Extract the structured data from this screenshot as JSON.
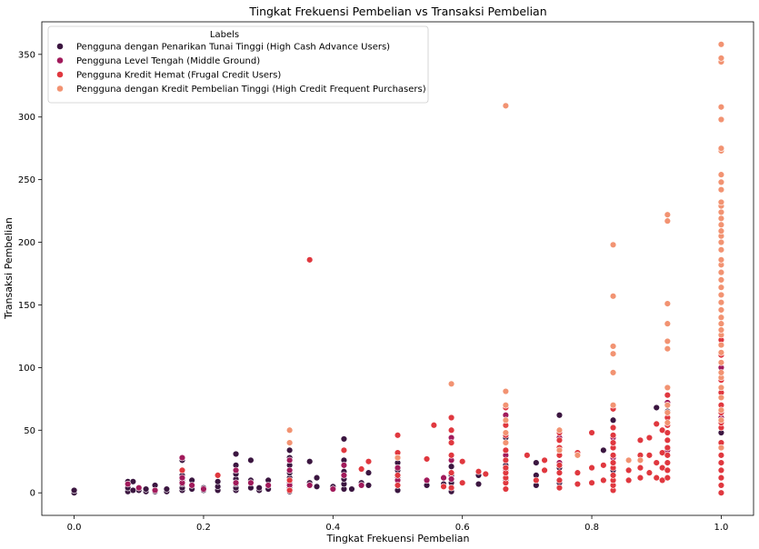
{
  "chart_data": {
    "type": "scatter",
    "title": "Tingkat Frekuensi  Pembelian vs Transaksi Pembelian",
    "xlabel": "Tingkat Frekuensi  Pembelian",
    "ylabel": "Transaksi Pembelian",
    "xlim": [
      -0.05,
      1.05
    ],
    "ylim": [
      -18,
      376
    ],
    "xticks": [
      0.0,
      0.2,
      0.4,
      0.6,
      0.8,
      1.0
    ],
    "xtick_labels": [
      "0.0",
      "0.2",
      "0.4",
      "0.6",
      "0.8",
      "1.0"
    ],
    "yticks": [
      0,
      50,
      100,
      150,
      200,
      250,
      300,
      350
    ],
    "ytick_labels": [
      "0",
      "50",
      "100",
      "150",
      "200",
      "250",
      "300",
      "350"
    ],
    "grid": false,
    "legend": {
      "title": "Labels",
      "placement": "upper-left"
    },
    "series": [
      {
        "name": "Pengguna dengan Penarikan Tunai Tinggi (High Cash Advance Users)",
        "color": "#3b1640",
        "points": [
          [
            0.0,
            0
          ],
          [
            0.0,
            2
          ],
          [
            0.083,
            1
          ],
          [
            0.083,
            4
          ],
          [
            0.083,
            9
          ],
          [
            0.091,
            2
          ],
          [
            0.091,
            9
          ],
          [
            0.1,
            2
          ],
          [
            0.111,
            1
          ],
          [
            0.111,
            3
          ],
          [
            0.125,
            1
          ],
          [
            0.125,
            6
          ],
          [
            0.143,
            1
          ],
          [
            0.143,
            3
          ],
          [
            0.167,
            2
          ],
          [
            0.167,
            4
          ],
          [
            0.167,
            7
          ],
          [
            0.167,
            10
          ],
          [
            0.167,
            14
          ],
          [
            0.167,
            26
          ],
          [
            0.182,
            3
          ],
          [
            0.182,
            10
          ],
          [
            0.2,
            2
          ],
          [
            0.2,
            4
          ],
          [
            0.222,
            2
          ],
          [
            0.222,
            5
          ],
          [
            0.222,
            9
          ],
          [
            0.25,
            2
          ],
          [
            0.25,
            4
          ],
          [
            0.25,
            7
          ],
          [
            0.25,
            11
          ],
          [
            0.25,
            15
          ],
          [
            0.25,
            22
          ],
          [
            0.25,
            31
          ],
          [
            0.273,
            4
          ],
          [
            0.273,
            10
          ],
          [
            0.273,
            26
          ],
          [
            0.286,
            2
          ],
          [
            0.286,
            4
          ],
          [
            0.3,
            3
          ],
          [
            0.3,
            10
          ],
          [
            0.333,
            1
          ],
          [
            0.333,
            4
          ],
          [
            0.333,
            8
          ],
          [
            0.333,
            12
          ],
          [
            0.333,
            16
          ],
          [
            0.333,
            22
          ],
          [
            0.333,
            28
          ],
          [
            0.333,
            34
          ],
          [
            0.364,
            8
          ],
          [
            0.364,
            25
          ],
          [
            0.375,
            5
          ],
          [
            0.375,
            12
          ],
          [
            0.4,
            5
          ],
          [
            0.417,
            3
          ],
          [
            0.417,
            7
          ],
          [
            0.417,
            11
          ],
          [
            0.417,
            17
          ],
          [
            0.417,
            26
          ],
          [
            0.417,
            43
          ],
          [
            0.429,
            3
          ],
          [
            0.444,
            8
          ],
          [
            0.455,
            6
          ],
          [
            0.455,
            16
          ],
          [
            0.5,
            2
          ],
          [
            0.5,
            6
          ],
          [
            0.5,
            12
          ],
          [
            0.5,
            18
          ],
          [
            0.5,
            24
          ],
          [
            0.545,
            6
          ],
          [
            0.571,
            7
          ],
          [
            0.583,
            1
          ],
          [
            0.583,
            8
          ],
          [
            0.583,
            14
          ],
          [
            0.583,
            21
          ],
          [
            0.625,
            7
          ],
          [
            0.625,
            14
          ],
          [
            0.667,
            10
          ],
          [
            0.667,
            22
          ],
          [
            0.667,
            44
          ],
          [
            0.714,
            6
          ],
          [
            0.714,
            14
          ],
          [
            0.714,
            24
          ],
          [
            0.75,
            8
          ],
          [
            0.75,
            20
          ],
          [
            0.75,
            62
          ],
          [
            0.818,
            34
          ],
          [
            0.833,
            18
          ],
          [
            0.833,
            58
          ],
          [
            0.9,
            68
          ],
          [
            0.917,
            65
          ],
          [
            1.0,
            48
          ]
        ]
      },
      {
        "name": "Pengguna Level Tengah (Middle Ground)",
        "color": "#a11a5b",
        "points": [
          [
            0.083,
            7
          ],
          [
            0.1,
            4
          ],
          [
            0.125,
            2
          ],
          [
            0.167,
            8
          ],
          [
            0.167,
            12
          ],
          [
            0.167,
            28
          ],
          [
            0.182,
            6
          ],
          [
            0.2,
            3
          ],
          [
            0.25,
            8
          ],
          [
            0.25,
            18
          ],
          [
            0.273,
            8
          ],
          [
            0.3,
            6
          ],
          [
            0.333,
            6
          ],
          [
            0.333,
            18
          ],
          [
            0.333,
            26
          ],
          [
            0.364,
            6
          ],
          [
            0.4,
            3
          ],
          [
            0.417,
            14
          ],
          [
            0.417,
            22
          ],
          [
            0.444,
            6
          ],
          [
            0.5,
            10
          ],
          [
            0.5,
            20
          ],
          [
            0.545,
            10
          ],
          [
            0.571,
            12
          ],
          [
            0.583,
            11
          ],
          [
            0.583,
            26
          ],
          [
            0.583,
            44
          ],
          [
            0.667,
            18
          ],
          [
            0.667,
            30
          ],
          [
            0.667,
            62
          ],
          [
            0.75,
            24
          ],
          [
            0.75,
            44
          ],
          [
            0.833,
            28
          ],
          [
            0.833,
            44
          ],
          [
            0.917,
            34
          ],
          [
            0.917,
            72
          ],
          [
            1.0,
            36
          ],
          [
            1.0,
            60
          ],
          [
            1.0,
            100
          ]
        ]
      },
      {
        "name": "Pengguna Kredit Hemat (Frugal Credit Users)",
        "color": "#e0383f",
        "points": [
          [
            0.167,
            18
          ],
          [
            0.222,
            14
          ],
          [
            0.333,
            2
          ],
          [
            0.333,
            10
          ],
          [
            0.364,
            186
          ],
          [
            0.417,
            34
          ],
          [
            0.444,
            19
          ],
          [
            0.455,
            25
          ],
          [
            0.5,
            6
          ],
          [
            0.5,
            14
          ],
          [
            0.5,
            32
          ],
          [
            0.5,
            46
          ],
          [
            0.545,
            27
          ],
          [
            0.556,
            54
          ],
          [
            0.571,
            5
          ],
          [
            0.583,
            4
          ],
          [
            0.583,
            16
          ],
          [
            0.583,
            30
          ],
          [
            0.583,
            40
          ],
          [
            0.583,
            50
          ],
          [
            0.583,
            60
          ],
          [
            0.6,
            8
          ],
          [
            0.6,
            25
          ],
          [
            0.625,
            17
          ],
          [
            0.636,
            15
          ],
          [
            0.667,
            3
          ],
          [
            0.667,
            8
          ],
          [
            0.667,
            12
          ],
          [
            0.667,
            16
          ],
          [
            0.667,
            20
          ],
          [
            0.667,
            26
          ],
          [
            0.667,
            34
          ],
          [
            0.667,
            40
          ],
          [
            0.667,
            46
          ],
          [
            0.667,
            54
          ],
          [
            0.667,
            68
          ],
          [
            0.7,
            30
          ],
          [
            0.714,
            10
          ],
          [
            0.727,
            18
          ],
          [
            0.727,
            26
          ],
          [
            0.75,
            4
          ],
          [
            0.75,
            10
          ],
          [
            0.75,
            16
          ],
          [
            0.75,
            22
          ],
          [
            0.75,
            30
          ],
          [
            0.75,
            36
          ],
          [
            0.75,
            42
          ],
          [
            0.75,
            48
          ],
          [
            0.778,
            7
          ],
          [
            0.778,
            16
          ],
          [
            0.778,
            32
          ],
          [
            0.8,
            8
          ],
          [
            0.8,
            20
          ],
          [
            0.8,
            48
          ],
          [
            0.818,
            10
          ],
          [
            0.818,
            22
          ],
          [
            0.833,
            2
          ],
          [
            0.833,
            6
          ],
          [
            0.833,
            10
          ],
          [
            0.833,
            14
          ],
          [
            0.833,
            20
          ],
          [
            0.833,
            24
          ],
          [
            0.833,
            30
          ],
          [
            0.833,
            36
          ],
          [
            0.833,
            40
          ],
          [
            0.833,
            46
          ],
          [
            0.833,
            52
          ],
          [
            0.833,
            67
          ],
          [
            0.857,
            10
          ],
          [
            0.857,
            18
          ],
          [
            0.875,
            12
          ],
          [
            0.875,
            20
          ],
          [
            0.875,
            30
          ],
          [
            0.875,
            42
          ],
          [
            0.889,
            16
          ],
          [
            0.889,
            30
          ],
          [
            0.889,
            44
          ],
          [
            0.9,
            12
          ],
          [
            0.9,
            24
          ],
          [
            0.9,
            55
          ],
          [
            0.909,
            10
          ],
          [
            0.909,
            20
          ],
          [
            0.909,
            32
          ],
          [
            0.909,
            50
          ],
          [
            0.917,
            12
          ],
          [
            0.917,
            18
          ],
          [
            0.917,
            24
          ],
          [
            0.917,
            30
          ],
          [
            0.917,
            36
          ],
          [
            0.917,
            42
          ],
          [
            0.917,
            48
          ],
          [
            0.917,
            54
          ],
          [
            0.917,
            60
          ],
          [
            0.917,
            78
          ],
          [
            1.0,
            0
          ],
          [
            1.0,
            6
          ],
          [
            1.0,
            12
          ],
          [
            1.0,
            18
          ],
          [
            1.0,
            24
          ],
          [
            1.0,
            30
          ],
          [
            1.0,
            40
          ],
          [
            1.0,
            52
          ],
          [
            1.0,
            56
          ],
          [
            1.0,
            64
          ],
          [
            1.0,
            70
          ],
          [
            1.0,
            80
          ],
          [
            1.0,
            90
          ],
          [
            1.0,
            110
          ],
          [
            1.0,
            122
          ]
        ]
      },
      {
        "name": "Pengguna dengan Kredit Pembelian Tinggi (High Credit Frequent Purchasers)",
        "color": "#f29372",
        "points": [
          [
            0.333,
            40
          ],
          [
            0.333,
            50
          ],
          [
            0.5,
            28
          ],
          [
            0.583,
            87
          ],
          [
            0.667,
            40
          ],
          [
            0.667,
            48
          ],
          [
            0.667,
            58
          ],
          [
            0.667,
            70
          ],
          [
            0.667,
            81
          ],
          [
            0.667,
            309
          ],
          [
            0.75,
            34
          ],
          [
            0.75,
            50
          ],
          [
            0.778,
            30
          ],
          [
            0.833,
            70
          ],
          [
            0.833,
            96
          ],
          [
            0.833,
            111
          ],
          [
            0.833,
            117
          ],
          [
            0.833,
            157
          ],
          [
            0.833,
            198
          ],
          [
            0.857,
            26
          ],
          [
            0.875,
            26
          ],
          [
            0.917,
            56
          ],
          [
            0.917,
            64
          ],
          [
            0.917,
            70
          ],
          [
            0.917,
            84
          ],
          [
            0.917,
            115
          ],
          [
            0.917,
            121
          ],
          [
            0.917,
            135
          ],
          [
            0.917,
            151
          ],
          [
            0.917,
            217
          ],
          [
            0.917,
            222
          ],
          [
            1.0,
            36
          ],
          [
            1.0,
            58
          ],
          [
            1.0,
            66
          ],
          [
            1.0,
            76
          ],
          [
            1.0,
            84
          ],
          [
            1.0,
            92
          ],
          [
            1.0,
            96
          ],
          [
            1.0,
            104
          ],
          [
            1.0,
            112
          ],
          [
            1.0,
            118
          ],
          [
            1.0,
            126
          ],
          [
            1.0,
            130
          ],
          [
            1.0,
            135
          ],
          [
            1.0,
            140
          ],
          [
            1.0,
            146
          ],
          [
            1.0,
            152
          ],
          [
            1.0,
            158
          ],
          [
            1.0,
            164
          ],
          [
            1.0,
            170
          ],
          [
            1.0,
            176
          ],
          [
            1.0,
            182
          ],
          [
            1.0,
            186
          ],
          [
            1.0,
            194
          ],
          [
            1.0,
            200
          ],
          [
            1.0,
            205
          ],
          [
            1.0,
            209
          ],
          [
            1.0,
            214
          ],
          [
            1.0,
            219
          ],
          [
            1.0,
            224
          ],
          [
            1.0,
            229
          ],
          [
            1.0,
            232
          ],
          [
            1.0,
            242
          ],
          [
            1.0,
            248
          ],
          [
            1.0,
            254
          ],
          [
            1.0,
            273
          ],
          [
            1.0,
            275
          ],
          [
            1.0,
            298
          ],
          [
            1.0,
            308
          ],
          [
            1.0,
            344
          ],
          [
            1.0,
            347
          ],
          [
            1.0,
            358
          ]
        ]
      }
    ]
  }
}
